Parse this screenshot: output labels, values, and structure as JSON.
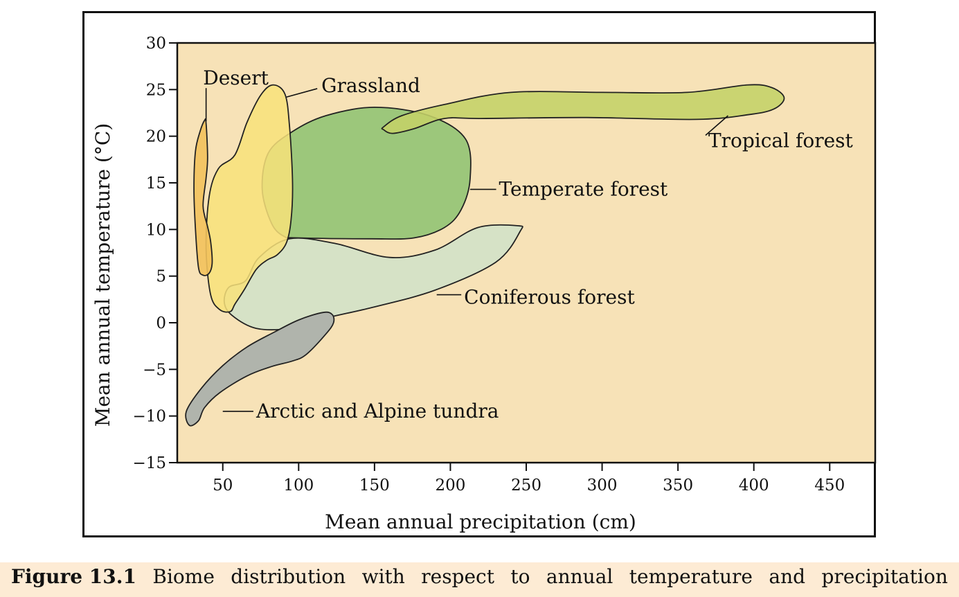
{
  "chart_data": {
    "type": "area",
    "xlabel": "Mean annual precipitation (cm)",
    "ylabel": "Mean annual temperature (°C)",
    "xlim": [
      20,
      480
    ],
    "ylim": [
      -15,
      30
    ],
    "x_ticks": [
      50,
      100,
      150,
      200,
      250,
      300,
      350,
      400,
      450
    ],
    "y_ticks": [
      30,
      25,
      20,
      15,
      10,
      5,
      0,
      -5,
      -10,
      -15
    ],
    "y_tick_labels": [
      "30",
      "25",
      "20",
      "15",
      "10",
      "5",
      "0",
      "−5",
      "−10",
      "−15"
    ],
    "plot_background": "#f7e2b7",
    "series": [
      {
        "name": "Coniferous forest",
        "color": "#d6e2c6",
        "points": [
          [
            65,
            4.5
          ],
          [
            74,
            7
          ],
          [
            94,
            9
          ],
          [
            124,
            8.5
          ],
          [
            160,
            7
          ],
          [
            190,
            7.8
          ],
          [
            218,
            10.2
          ],
          [
            244,
            10.4
          ],
          [
            246,
            9.8
          ],
          [
            230,
            6.5
          ],
          [
            190,
            3.5
          ],
          [
            150,
            1.7
          ],
          [
            118,
            0.5
          ],
          [
            94,
            -0.6
          ],
          [
            72,
            -0.6
          ],
          [
            56,
            0.8
          ],
          [
            51,
            2.2
          ],
          [
            54,
            3.8
          ],
          [
            65,
            4.5
          ]
        ]
      },
      {
        "name": "Temperate forest",
        "color": "#9cc77b",
        "points": [
          [
            96,
            20.5
          ],
          [
            118,
            22.2
          ],
          [
            150,
            23.1
          ],
          [
            186,
            22.2
          ],
          [
            210,
            19.7
          ],
          [
            213,
            15.4
          ],
          [
            207,
            12.1
          ],
          [
            196,
            10.2
          ],
          [
            176,
            9.1
          ],
          [
            148,
            9.0
          ],
          [
            100,
            9.1
          ],
          [
            90,
            9.3
          ],
          [
            82,
            10.7
          ],
          [
            76,
            14.3
          ],
          [
            80,
            18.2
          ],
          [
            96,
            20.5
          ]
        ]
      },
      {
        "name": "Grassland",
        "color": "#f8e27a",
        "opacity": 0.85,
        "points": [
          [
            58,
            18
          ],
          [
            66,
            21.5
          ],
          [
            75,
            24.4
          ],
          [
            83,
            25.5
          ],
          [
            91,
            24.5
          ],
          [
            94,
            21
          ],
          [
            96,
            15
          ],
          [
            95,
            11
          ],
          [
            92,
            8.6
          ],
          [
            86,
            7.3
          ],
          [
            79,
            6.7
          ],
          [
            72,
            5.7
          ],
          [
            64,
            3.5
          ],
          [
            58,
            2.0
          ],
          [
            55,
            1.2
          ],
          [
            48,
            1.4
          ],
          [
            42,
            3.0
          ],
          [
            39,
            8
          ],
          [
            41,
            13.5
          ],
          [
            47,
            16.5
          ],
          [
            58,
            18
          ]
        ]
      },
      {
        "name": "Desert",
        "color": "#f2c25c",
        "opacity": 0.9,
        "points": [
          [
            35,
            20.5
          ],
          [
            38,
            21.7
          ],
          [
            39,
            21.4
          ],
          [
            40,
            17.7
          ],
          [
            39,
            15.5
          ],
          [
            37,
            12.5
          ],
          [
            40,
            10.3
          ],
          [
            42,
            8.7
          ],
          [
            43,
            6.4
          ],
          [
            41,
            5.3
          ],
          [
            37,
            5.1
          ],
          [
            34,
            5.9
          ],
          [
            32,
            10
          ],
          [
            31,
            14.4
          ],
          [
            32,
            18.4
          ],
          [
            35,
            20.5
          ]
        ]
      },
      {
        "name": "Tropical forest",
        "color": "#c4d168",
        "opacity": 0.88,
        "points": [
          [
            156,
            21.0
          ],
          [
            168,
            22.2
          ],
          [
            196,
            23.4
          ],
          [
            240,
            24.7
          ],
          [
            300,
            24.7
          ],
          [
            356,
            24.7
          ],
          [
            396,
            25.5
          ],
          [
            412,
            25.2
          ],
          [
            420,
            24.1
          ],
          [
            413,
            22.9
          ],
          [
            396,
            22.3
          ],
          [
            362,
            21.8
          ],
          [
            290,
            22.0
          ],
          [
            220,
            21.9
          ],
          [
            196,
            21.9
          ],
          [
            176,
            20.8
          ],
          [
            162,
            20.3
          ],
          [
            156,
            20.7
          ],
          [
            156,
            21.0
          ]
        ]
      },
      {
        "name": "Arctic and Alpine tundra",
        "color": "#b0b4ac",
        "points": [
          [
            26,
            -9.5
          ],
          [
            36,
            -7.0
          ],
          [
            50,
            -4.6
          ],
          [
            66,
            -2.6
          ],
          [
            84,
            -1.0
          ],
          [
            100,
            0.3
          ],
          [
            116,
            1.1
          ],
          [
            122,
            0.9
          ],
          [
            123,
            0.0
          ],
          [
            118,
            -1.2
          ],
          [
            105,
            -3.4
          ],
          [
            96,
            -4.1
          ],
          [
            82,
            -4.7
          ],
          [
            66,
            -5.7
          ],
          [
            48,
            -7.5
          ],
          [
            38,
            -9.1
          ],
          [
            34,
            -10.5
          ],
          [
            28,
            -11.0
          ],
          [
            26,
            -9.5
          ]
        ]
      }
    ],
    "annotations": [
      {
        "text": "Desert",
        "label_x": 37,
        "label_y": 26.2,
        "point": [
          39,
          21.6
        ]
      },
      {
        "text": "Grassland",
        "label_x": 115,
        "label_y": 25.4,
        "point": [
          92,
          24.2
        ]
      },
      {
        "text": "Tropical forest",
        "label_x": 370,
        "label_y": 19.5,
        "point": [
          383,
          22.2
        ]
      },
      {
        "text": "Temperate forest",
        "label_x": 232,
        "label_y": 14.3,
        "point": [
          213,
          14.3
        ]
      },
      {
        "text": "Coniferous forest",
        "label_x": 209,
        "label_y": 2.7,
        "point": [
          191,
          3.0
        ]
      },
      {
        "text": "Arctic and Alpine tundra",
        "label_x": 72,
        "label_y": -9.5,
        "point": [
          50,
          -9.5
        ]
      }
    ]
  },
  "caption": {
    "label": "Figure 13.1",
    "text": "Biome distribution with respect to annual temperature and precipitation"
  }
}
